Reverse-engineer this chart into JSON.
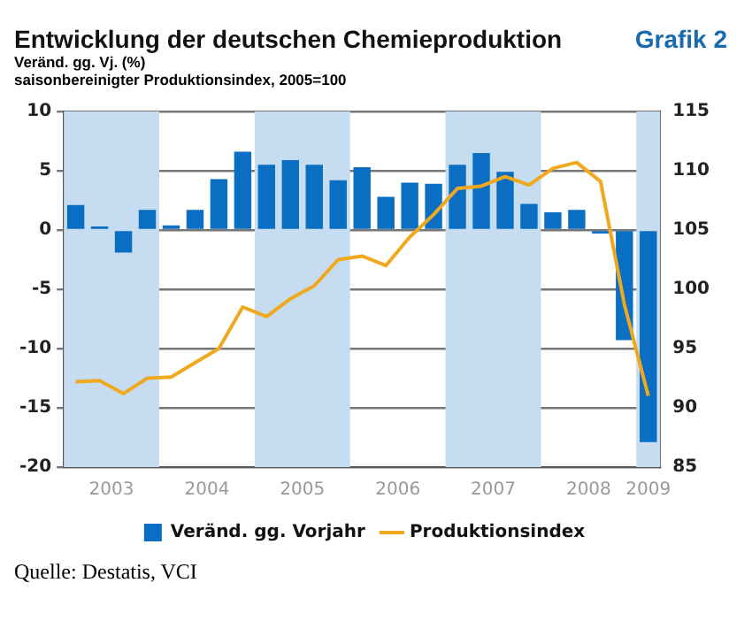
{
  "chart_data": {
    "type": "bar",
    "title": "Entwicklung der deutschen Chemieproduktion",
    "subtitle": "Veränd. gg. Vj. (%)",
    "annotations": [
      "Grafik 2",
      "saisonbereinigter Produktionsindex, 2005=100",
      "Quelle: Destatis, VCI"
    ],
    "x": [
      2003.125,
      2003.375,
      2003.625,
      2003.875,
      2004.125,
      2004.375,
      2004.625,
      2004.875,
      2005.125,
      2005.375,
      2005.625,
      2005.875,
      2006.125,
      2006.375,
      2006.625,
      2006.875,
      2007.125,
      2007.375,
      2007.625,
      2007.875,
      2008.125,
      2008.375,
      2008.625,
      2008.875,
      2009.125
    ],
    "series": [
      {
        "name": "Veränd. gg. Vorjahr",
        "color": "#0a6fc2",
        "values": [
          2.1,
          0.3,
          -1.9,
          1.7,
          0.4,
          1.7,
          4.3,
          6.6,
          5.5,
          5.9,
          5.5,
          4.2,
          5.3,
          2.8,
          4.0,
          3.9,
          5.5,
          6.5,
          4.9,
          2.2,
          1.5,
          1.7,
          -0.3,
          -9.3,
          -17.9
        ]
      },
      {
        "name": "Produktionsindex",
        "type": "line",
        "axis": "y2",
        "color": "#f0a81e",
        "values": [
          92.2,
          92.3,
          91.2,
          92.5,
          92.6,
          93.8,
          95.0,
          98.5,
          97.7,
          99.2,
          100.3,
          102.5,
          102.8,
          102.0,
          104.4,
          106.3,
          108.5,
          108.7,
          109.5,
          108.8,
          110.2,
          110.7,
          109.1,
          98.7,
          91.0
        ]
      }
    ],
    "xlim": [
      2003,
      2009.25
    ],
    "xticks": [
      {
        "value": 2003.5,
        "label": "2003"
      },
      {
        "value": 2004.5,
        "label": "2004"
      },
      {
        "value": 2005.5,
        "label": "2005"
      },
      {
        "value": 2006.5,
        "label": "2006"
      },
      {
        "value": 2007.5,
        "label": "2007"
      },
      {
        "value": 2008.5,
        "label": "2008"
      },
      {
        "value": 2009.125,
        "label": "2009"
      }
    ],
    "ylim": [
      -20,
      10
    ],
    "yticks": [
      -20,
      -15,
      -10,
      -5,
      0,
      5,
      10
    ],
    "y2lim": [
      85,
      115
    ],
    "y2ticks": [
      85,
      90,
      95,
      100,
      105,
      110,
      115
    ],
    "bands": [
      {
        "axis": "x",
        "from": 2003,
        "to": 2004,
        "color": "#c6dcf0"
      },
      {
        "axis": "x",
        "from": 2005,
        "to": 2006,
        "color": "#c6dcf0"
      },
      {
        "axis": "x",
        "from": 2007,
        "to": 2008,
        "color": "#c6dcf0"
      },
      {
        "axis": "x",
        "from": 2009,
        "to": 2009.25,
        "color": "#c6dcf0"
      }
    ],
    "grid": "y",
    "legend": "bottom",
    "marker": "none",
    "line_style": "solid"
  }
}
